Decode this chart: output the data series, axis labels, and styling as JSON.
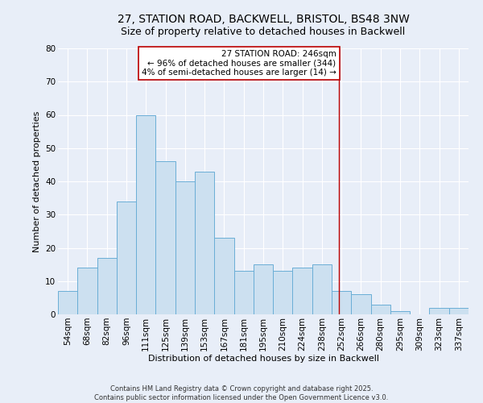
{
  "title_line1": "27, STATION ROAD, BACKWELL, BRISTOL, BS48 3NW",
  "title_line2": "Size of property relative to detached houses in Backwell",
  "xlabel": "Distribution of detached houses by size in Backwell",
  "ylabel": "Number of detached properties",
  "bar_labels": [
    "54sqm",
    "68sqm",
    "82sqm",
    "96sqm",
    "111sqm",
    "125sqm",
    "139sqm",
    "153sqm",
    "167sqm",
    "181sqm",
    "195sqm",
    "210sqm",
    "224sqm",
    "238sqm",
    "252sqm",
    "266sqm",
    "280sqm",
    "295sqm",
    "309sqm",
    "323sqm",
    "337sqm"
  ],
  "bar_heights": [
    7,
    14,
    17,
    34,
    60,
    46,
    40,
    43,
    23,
    13,
    15,
    13,
    14,
    15,
    7,
    6,
    3,
    1,
    0,
    2,
    2
  ],
  "bar_color": "#cce0f0",
  "bar_edge_color": "#6aaed6",
  "background_color": "#e8eef8",
  "grid_color": "#ffffff",
  "vline_x_index": 13.88,
  "vline_color": "#bb0000",
  "annotation_title": "27 STATION ROAD: 246sqm",
  "annotation_line1": "← 96% of detached houses are smaller (344)",
  "annotation_line2": "4% of semi-detached houses are larger (14) →",
  "annotation_box_color": "#ffffff",
  "annotation_box_edge_color": "#bb0000",
  "ylim": [
    0,
    80
  ],
  "yticks": [
    0,
    10,
    20,
    30,
    40,
    50,
    60,
    70,
    80
  ],
  "footer_line1": "Contains HM Land Registry data © Crown copyright and database right 2025.",
  "footer_line2": "Contains public sector information licensed under the Open Government Licence v3.0.",
  "title_fontsize": 10,
  "subtitle_fontsize": 9,
  "axis_label_fontsize": 8,
  "tick_fontsize": 7.5,
  "annotation_fontsize": 7.5,
  "footer_fontsize": 6
}
